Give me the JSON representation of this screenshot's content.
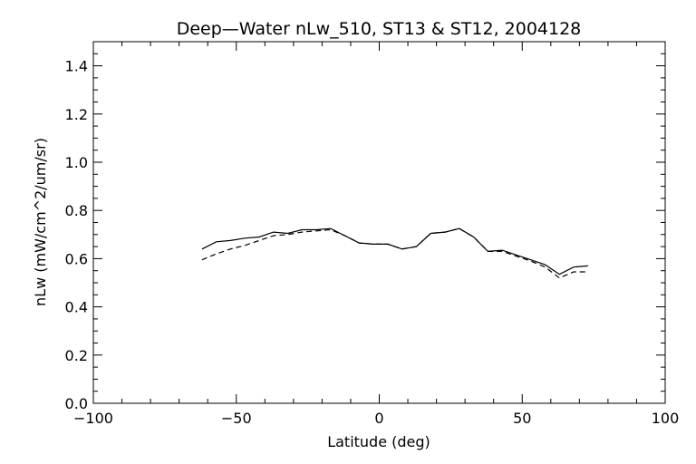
{
  "chart_data": {
    "type": "line",
    "title": "Deep—Water nLw_510, ST13 & ST12, 2004128",
    "xlabel": "Latitude (deg)",
    "ylabel": "nLw (mW/cm^2/um/sr)",
    "xlim": [
      -100,
      100
    ],
    "ylim": [
      0.0,
      1.5
    ],
    "xticks": [
      -100,
      -50,
      0,
      50,
      100
    ],
    "xtick_labels": [
      "−100",
      "−50",
      "0",
      "50",
      "100"
    ],
    "yticks": [
      0.0,
      0.2,
      0.4,
      0.6,
      0.8,
      1.0,
      1.2,
      1.4
    ],
    "ytick_labels": [
      "0.0",
      "0.2",
      "0.4",
      "0.6",
      "0.8",
      "1.0",
      "1.2",
      "1.4"
    ],
    "grid": false,
    "series": [
      {
        "style": "solid",
        "color": "#000000",
        "x": [
          -62,
          -57,
          -52,
          -47,
          -42,
          -37,
          -32,
          -27,
          -22,
          -17,
          -12,
          -7,
          -2,
          3,
          8,
          13,
          18,
          23,
          28,
          33,
          38,
          43,
          48,
          53,
          58,
          63,
          68,
          73
        ],
        "y": [
          0.64,
          0.67,
          0.675,
          0.685,
          0.69,
          0.71,
          0.705,
          0.72,
          0.72,
          0.725,
          0.695,
          0.665,
          0.66,
          0.66,
          0.64,
          0.65,
          0.705,
          0.71,
          0.725,
          0.69,
          0.63,
          0.635,
          0.615,
          0.595,
          0.575,
          0.535,
          0.565,
          0.57
        ]
      },
      {
        "style": "dashed",
        "color": "#000000",
        "x": [
          -62,
          -57,
          -52,
          -47,
          -42,
          -37,
          -32,
          -27,
          -22,
          -17,
          -12,
          -7,
          -2,
          3,
          8,
          13,
          18,
          23,
          28,
          33,
          38,
          43,
          48,
          53,
          58,
          63,
          68,
          73
        ],
        "y": [
          0.595,
          0.62,
          0.64,
          0.655,
          0.675,
          0.695,
          0.7,
          0.71,
          0.715,
          0.72,
          0.695,
          0.665,
          0.66,
          0.66,
          0.64,
          0.65,
          0.705,
          0.71,
          0.725,
          0.69,
          0.63,
          0.63,
          0.61,
          0.59,
          0.565,
          0.52,
          0.545,
          0.545
        ]
      }
    ]
  }
}
